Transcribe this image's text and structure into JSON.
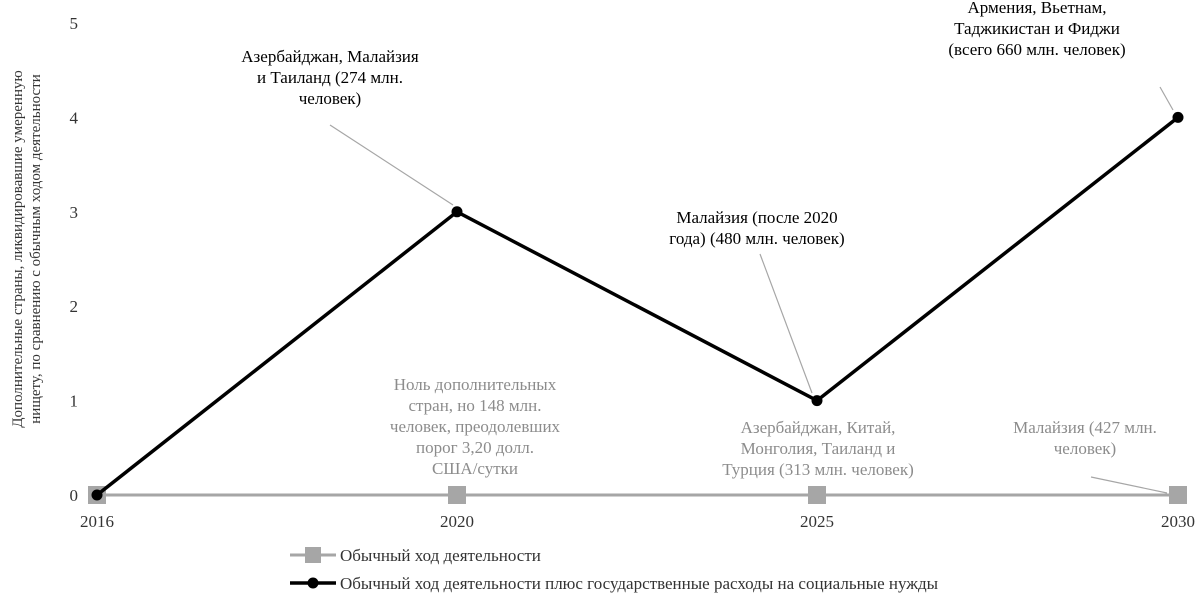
{
  "chart_data": {
    "type": "line",
    "x": [
      "2016",
      "2020",
      "2025",
      "2030"
    ],
    "ylabel": [
      "Дополнительные страны, ликвидировавшие умеренную",
      "нищету, по сравнению с обычным ходом деятельности"
    ],
    "ylim": [
      0,
      5
    ],
    "yticks": [
      "0",
      "1",
      "2",
      "3",
      "4",
      "5"
    ],
    "grid": false,
    "legend_position": "bottom",
    "series": [
      {
        "name": "Обычный ход деятельности",
        "values": [
          0,
          0,
          0,
          0
        ],
        "color": "#a6a6a6",
        "marker": "square"
      },
      {
        "name": "Обычный ход деятельности плюс государственные расходы на социальные нужды",
        "values": [
          0,
          3,
          1,
          4
        ],
        "color": "#000000",
        "marker": "circle"
      }
    ],
    "annotations": [
      {
        "series": 1,
        "x": "2020",
        "color": "black",
        "lines": [
          "Азербайджан, Малайзия",
          "и Таиланд (274 млн.",
          "человек)"
        ]
      },
      {
        "series": 1,
        "x": "2025",
        "color": "black",
        "lines": [
          "Малайзия (после 2020",
          "года) (480 млн. человек)"
        ]
      },
      {
        "series": 1,
        "x": "2030",
        "color": "black",
        "lines": [
          "Армения, Вьетнам,",
          "Таджикистан и Фиджи",
          "(всего 660 млн. человек)"
        ]
      },
      {
        "series": 0,
        "x": "2020",
        "color": "gray",
        "lines": [
          "Ноль дополнительных",
          "стран, но 148 млн.",
          "человек, преодолевших",
          "порог 3,20 долл.",
          "США/сутки"
        ]
      },
      {
        "series": 0,
        "x": "2025",
        "color": "gray",
        "lines": [
          "Азербайджан, Китай,",
          "Монголия, Таиланд и",
          "Турция (313 млн. человек)"
        ]
      },
      {
        "series": 0,
        "x": "2030",
        "color": "gray",
        "lines": [
          "Малайзия (427 млн.",
          "человек)"
        ]
      }
    ]
  }
}
